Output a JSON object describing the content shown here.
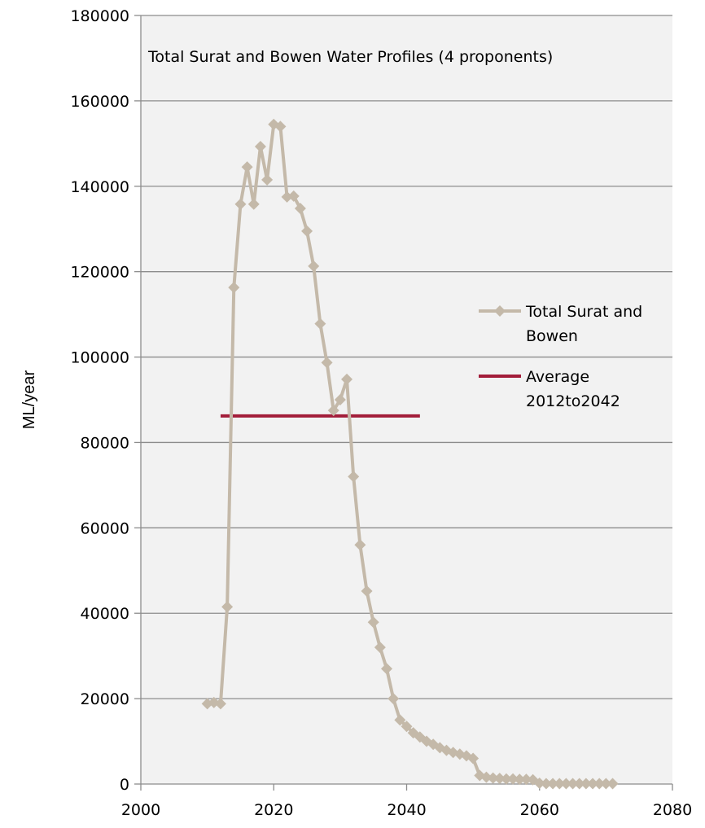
{
  "chart_data": {
    "type": "line",
    "title": "Total Surat and Bowen Water Profiles (4 proponents)",
    "xlabel": "",
    "ylabel": "ML/year",
    "xlim": [
      2000,
      2080
    ],
    "ylim": [
      0,
      180000
    ],
    "x_ticks": [
      2000,
      2020,
      2040,
      2060,
      2080
    ],
    "y_ticks": [
      0,
      20000,
      40000,
      60000,
      80000,
      100000,
      120000,
      140000,
      160000,
      180000
    ],
    "grid": "horizontal",
    "legend_position": "right",
    "colors": {
      "plot_bg": "#f2f2f2",
      "grid": "#8c8c8c",
      "series1": "#c4b9a9",
      "series2": "#a31d3a"
    },
    "series": [
      {
        "name": "Total Surat and Bowen",
        "legend_lines": [
          "Total Surat and",
          "Bowen"
        ],
        "marker": "diamond",
        "points": [
          [
            2010,
            18800
          ],
          [
            2011,
            19100
          ],
          [
            2012,
            18800
          ],
          [
            2013,
            41500
          ],
          [
            2014,
            116300
          ],
          [
            2015,
            135800
          ],
          [
            2016,
            144500
          ],
          [
            2017,
            135800
          ],
          [
            2018,
            149300
          ],
          [
            2019,
            141500
          ],
          [
            2020,
            154500
          ],
          [
            2021,
            154000
          ],
          [
            2022,
            137500
          ],
          [
            2023,
            137700
          ],
          [
            2024,
            134800
          ],
          [
            2025,
            129500
          ],
          [
            2026,
            121300
          ],
          [
            2027,
            107800
          ],
          [
            2028,
            98700
          ],
          [
            2029,
            87500
          ],
          [
            2030,
            90000
          ],
          [
            2031,
            94800
          ],
          [
            2032,
            72000
          ],
          [
            2033,
            56000
          ],
          [
            2034,
            45200
          ],
          [
            2035,
            37900
          ],
          [
            2036,
            32000
          ],
          [
            2037,
            27000
          ],
          [
            2038,
            20000
          ],
          [
            2039,
            15000
          ],
          [
            2040,
            13500
          ],
          [
            2041,
            12000
          ],
          [
            2042,
            11000
          ],
          [
            2043,
            10000
          ],
          [
            2044,
            9300
          ],
          [
            2045,
            8500
          ],
          [
            2046,
            7900
          ],
          [
            2047,
            7400
          ],
          [
            2048,
            7000
          ],
          [
            2049,
            6600
          ],
          [
            2050,
            6000
          ],
          [
            2051,
            2000
          ],
          [
            2052,
            1600
          ],
          [
            2053,
            1400
          ],
          [
            2054,
            1300
          ],
          [
            2055,
            1200
          ],
          [
            2056,
            1200
          ],
          [
            2057,
            1100
          ],
          [
            2058,
            1100
          ],
          [
            2059,
            1000
          ],
          [
            2060,
            200
          ],
          [
            2061,
            100
          ],
          [
            2062,
            100
          ],
          [
            2063,
            100
          ],
          [
            2064,
            100
          ],
          [
            2065,
            100
          ],
          [
            2066,
            100
          ],
          [
            2067,
            100
          ],
          [
            2068,
            100
          ],
          [
            2069,
            100
          ],
          [
            2070,
            100
          ],
          [
            2071,
            100
          ]
        ]
      },
      {
        "name": "Average 2012to2042",
        "legend_lines": [
          "Average",
          "2012to2042"
        ],
        "marker": "none",
        "points": [
          [
            2012,
            86200
          ],
          [
            2042,
            86200
          ]
        ]
      }
    ]
  }
}
